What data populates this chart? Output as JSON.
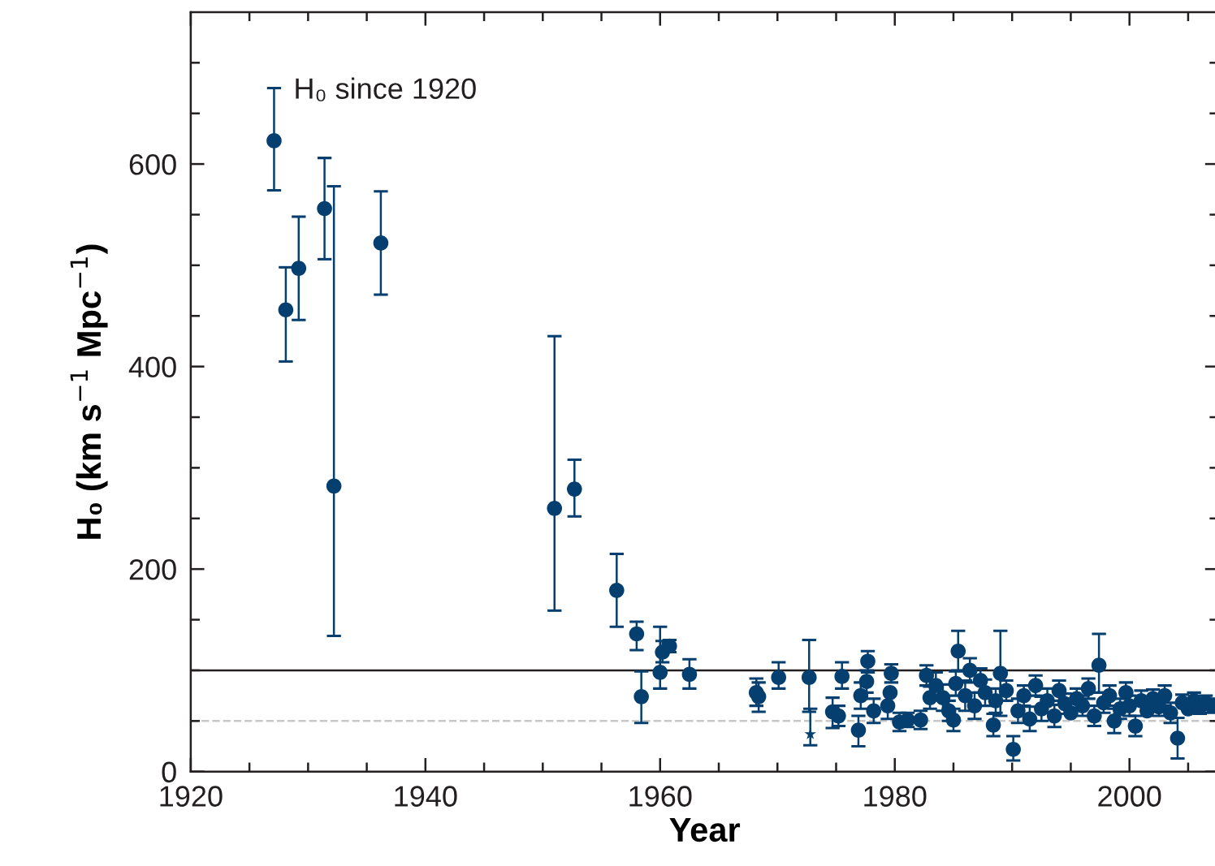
{
  "chart_data": {
    "type": "scatter",
    "xlabel": "Year",
    "ylabel": "H₀ (km s$^{−1}$ Mpc$^{−1}$)",
    "annotations": [
      "H₀ since 1920"
    ],
    "xlim": [
      1920,
      2007.6
    ],
    "ylim": [
      0,
      750
    ],
    "xticks": [
      1920,
      {
        "value": 1925,
        "label": null
      },
      {
        "value": 1930,
        "label": null
      },
      {
        "value": 1935,
        "label": null
      },
      1940,
      {
        "value": 1945,
        "label": null
      },
      {
        "value": 1950,
        "label": null
      },
      {
        "value": 1955,
        "label": null
      },
      1960,
      {
        "value": 1965,
        "label": null
      },
      {
        "value": 1970,
        "label": null
      },
      {
        "value": 1975,
        "label": null
      },
      1980,
      {
        "value": 1985,
        "label": null
      },
      {
        "value": 1990,
        "label": null
      },
      {
        "value": 1995,
        "label": null
      },
      2000,
      {
        "value": 2005,
        "label": null
      }
    ],
    "yticks": [
      0,
      {
        "value": 50,
        "label": null
      },
      {
        "value": 100,
        "label": null
      },
      {
        "value": 150,
        "label": null
      },
      200,
      {
        "value": 250,
        "label": null
      },
      {
        "value": 300,
        "label": null
      },
      {
        "value": 350,
        "label": null
      },
      400,
      {
        "value": 450,
        "label": null
      },
      {
        "value": 500,
        "label": null
      },
      {
        "value": 550,
        "label": null
      },
      600,
      {
        "value": 650,
        "label": null
      },
      {
        "value": 700,
        "label": null
      }
    ],
    "grid": false,
    "legend": false,
    "ref_lines": [
      {
        "axis": "y",
        "value": 100,
        "color": "#231f20",
        "line_style": "solid"
      },
      {
        "axis": "y",
        "value": 50,
        "color": "#c8c8c8",
        "line_style": "dashed"
      }
    ],
    "series": [
      {
        "color": "#053f6f",
        "marker": "circle",
        "x": [
          1927.1,
          1928.1,
          1929.2,
          1931.4,
          1932.2,
          1936.2,
          1951.0,
          1952.7,
          1956.3,
          1958.0,
          1958.4,
          1960.0,
          1960.2,
          1960.8,
          1962.5,
          1968.2,
          1968.4,
          1970.1,
          1972.7,
          1974.7,
          1975.2,
          1975.5,
          1976.9,
          1977.1,
          1977.6,
          1977.7,
          1978.2,
          1979.4,
          1979.6,
          1979.7,
          1980.4,
          1981.1,
          1982.2,
          1982.7,
          1983.0,
          1983.5,
          1984.1,
          1984.6,
          1985.0,
          1985.2,
          1985.4,
          1986.0,
          1986.4,
          1986.8,
          1987.3,
          1987.7,
          1988.4,
          1988.6,
          1989.0,
          1989.5,
          1990.1,
          1990.5,
          1991.0,
          1991.5,
          1992.0,
          1992.5,
          1993.0,
          1993.6,
          1994.0,
          1994.5,
          1995.0,
          1995.5,
          1996.0,
          1996.5,
          1997.0,
          1997.4,
          1997.8,
          1998.3,
          1998.7,
          1999.2,
          1999.7,
          2000.0,
          2000.5,
          2001.0,
          2001.5,
          2002.0,
          2002.5,
          2003.0,
          2003.5,
          2004.1,
          2004.5,
          2005.0,
          2005.5,
          2006.0,
          2006.5,
          2007.0
        ],
        "values": [
          623,
          456,
          497,
          556,
          282,
          522,
          260,
          279,
          179,
          136,
          74,
          98,
          118,
          124,
          96,
          78,
          74,
          93,
          93,
          59,
          55,
          94,
          41,
          75,
          89,
          109,
          60,
          65,
          78,
          97,
          49,
          51,
          51,
          95,
          73,
          85,
          73,
          60,
          51,
          87,
          119,
          75,
          100,
          65,
          90,
          78,
          46,
          70,
          97,
          80,
          22,
          60,
          75,
          52,
          85,
          62,
          70,
          55,
          80,
          67,
          58,
          72,
          65,
          82,
          55,
          105,
          68,
          75,
          50,
          62,
          78,
          65,
          45,
          70,
          60,
          72,
          64,
          75,
          58,
          33,
          68,
          62,
          70,
          64,
          68,
          65
        ],
        "errors": [
          [
            574,
            675
          ],
          [
            405,
            498
          ],
          [
            446,
            548
          ],
          [
            506,
            606
          ],
          [
            134,
            578
          ],
          [
            471,
            573
          ],
          [
            159,
            430
          ],
          [
            252,
            308
          ],
          [
            143,
            215
          ],
          [
            120,
            148
          ],
          [
            48,
            99
          ],
          [
            82,
            143
          ],
          [
            108,
            129
          ],
          [
            118,
            130
          ],
          [
            82,
            111
          ],
          [
            65,
            92
          ],
          [
            59,
            88
          ],
          [
            82,
            108
          ],
          [
            59,
            130
          ],
          [
            43,
            73
          ],
          [
            45,
            65
          ],
          [
            82,
            108
          ],
          [
            25,
            55
          ],
          [
            62,
            88
          ],
          [
            78,
            100
          ],
          [
            98,
            119
          ],
          [
            48,
            72
          ],
          [
            52,
            65
          ],
          null,
          [
            88,
            106
          ],
          [
            40,
            58
          ],
          [
            44,
            58
          ],
          [
            42,
            60
          ],
          [
            85,
            105
          ],
          [
            62,
            84
          ],
          [
            85,
            98
          ],
          [
            60,
            86
          ],
          [
            50,
            70
          ],
          [
            40,
            62
          ],
          [
            75,
            99
          ],
          [
            100,
            139
          ],
          [
            60,
            90
          ],
          [
            88,
            112
          ],
          [
            52,
            78
          ],
          [
            78,
            102
          ],
          [
            65,
            91
          ],
          [
            35,
            57
          ],
          [
            58,
            82
          ],
          [
            55,
            139
          ],
          [
            70,
            90
          ],
          [
            11,
            35
          ],
          [
            48,
            72
          ],
          [
            65,
            85
          ],
          [
            40,
            64
          ],
          [
            75,
            95
          ],
          [
            50,
            74
          ],
          [
            58,
            82
          ],
          [
            44,
            66
          ],
          [
            70,
            90
          ],
          [
            57,
            77
          ],
          null,
          [
            62,
            82
          ],
          [
            55,
            75
          ],
          [
            72,
            92
          ],
          [
            45,
            65
          ],
          [
            78,
            136
          ],
          [
            58,
            78
          ],
          [
            65,
            85
          ],
          [
            38,
            62
          ],
          [
            52,
            72
          ],
          [
            68,
            88
          ],
          [
            55,
            75
          ],
          [
            35,
            55
          ],
          [
            70,
            80
          ],
          null,
          [
            72,
            81
          ],
          [
            55,
            64
          ],
          [
            65,
            85
          ],
          [
            48,
            68
          ],
          [
            13,
            53
          ],
          [
            68,
            76
          ],
          null,
          [
            70,
            78
          ],
          [
            57,
            64
          ],
          [
            61,
            75
          ],
          [
            58,
            72
          ]
        ]
      },
      {
        "color": "#053f6f",
        "marker": "star",
        "x": [
          1972.8
        ],
        "values": [
          37
        ],
        "errors": [
          [
            26,
            62
          ]
        ]
      }
    ]
  }
}
